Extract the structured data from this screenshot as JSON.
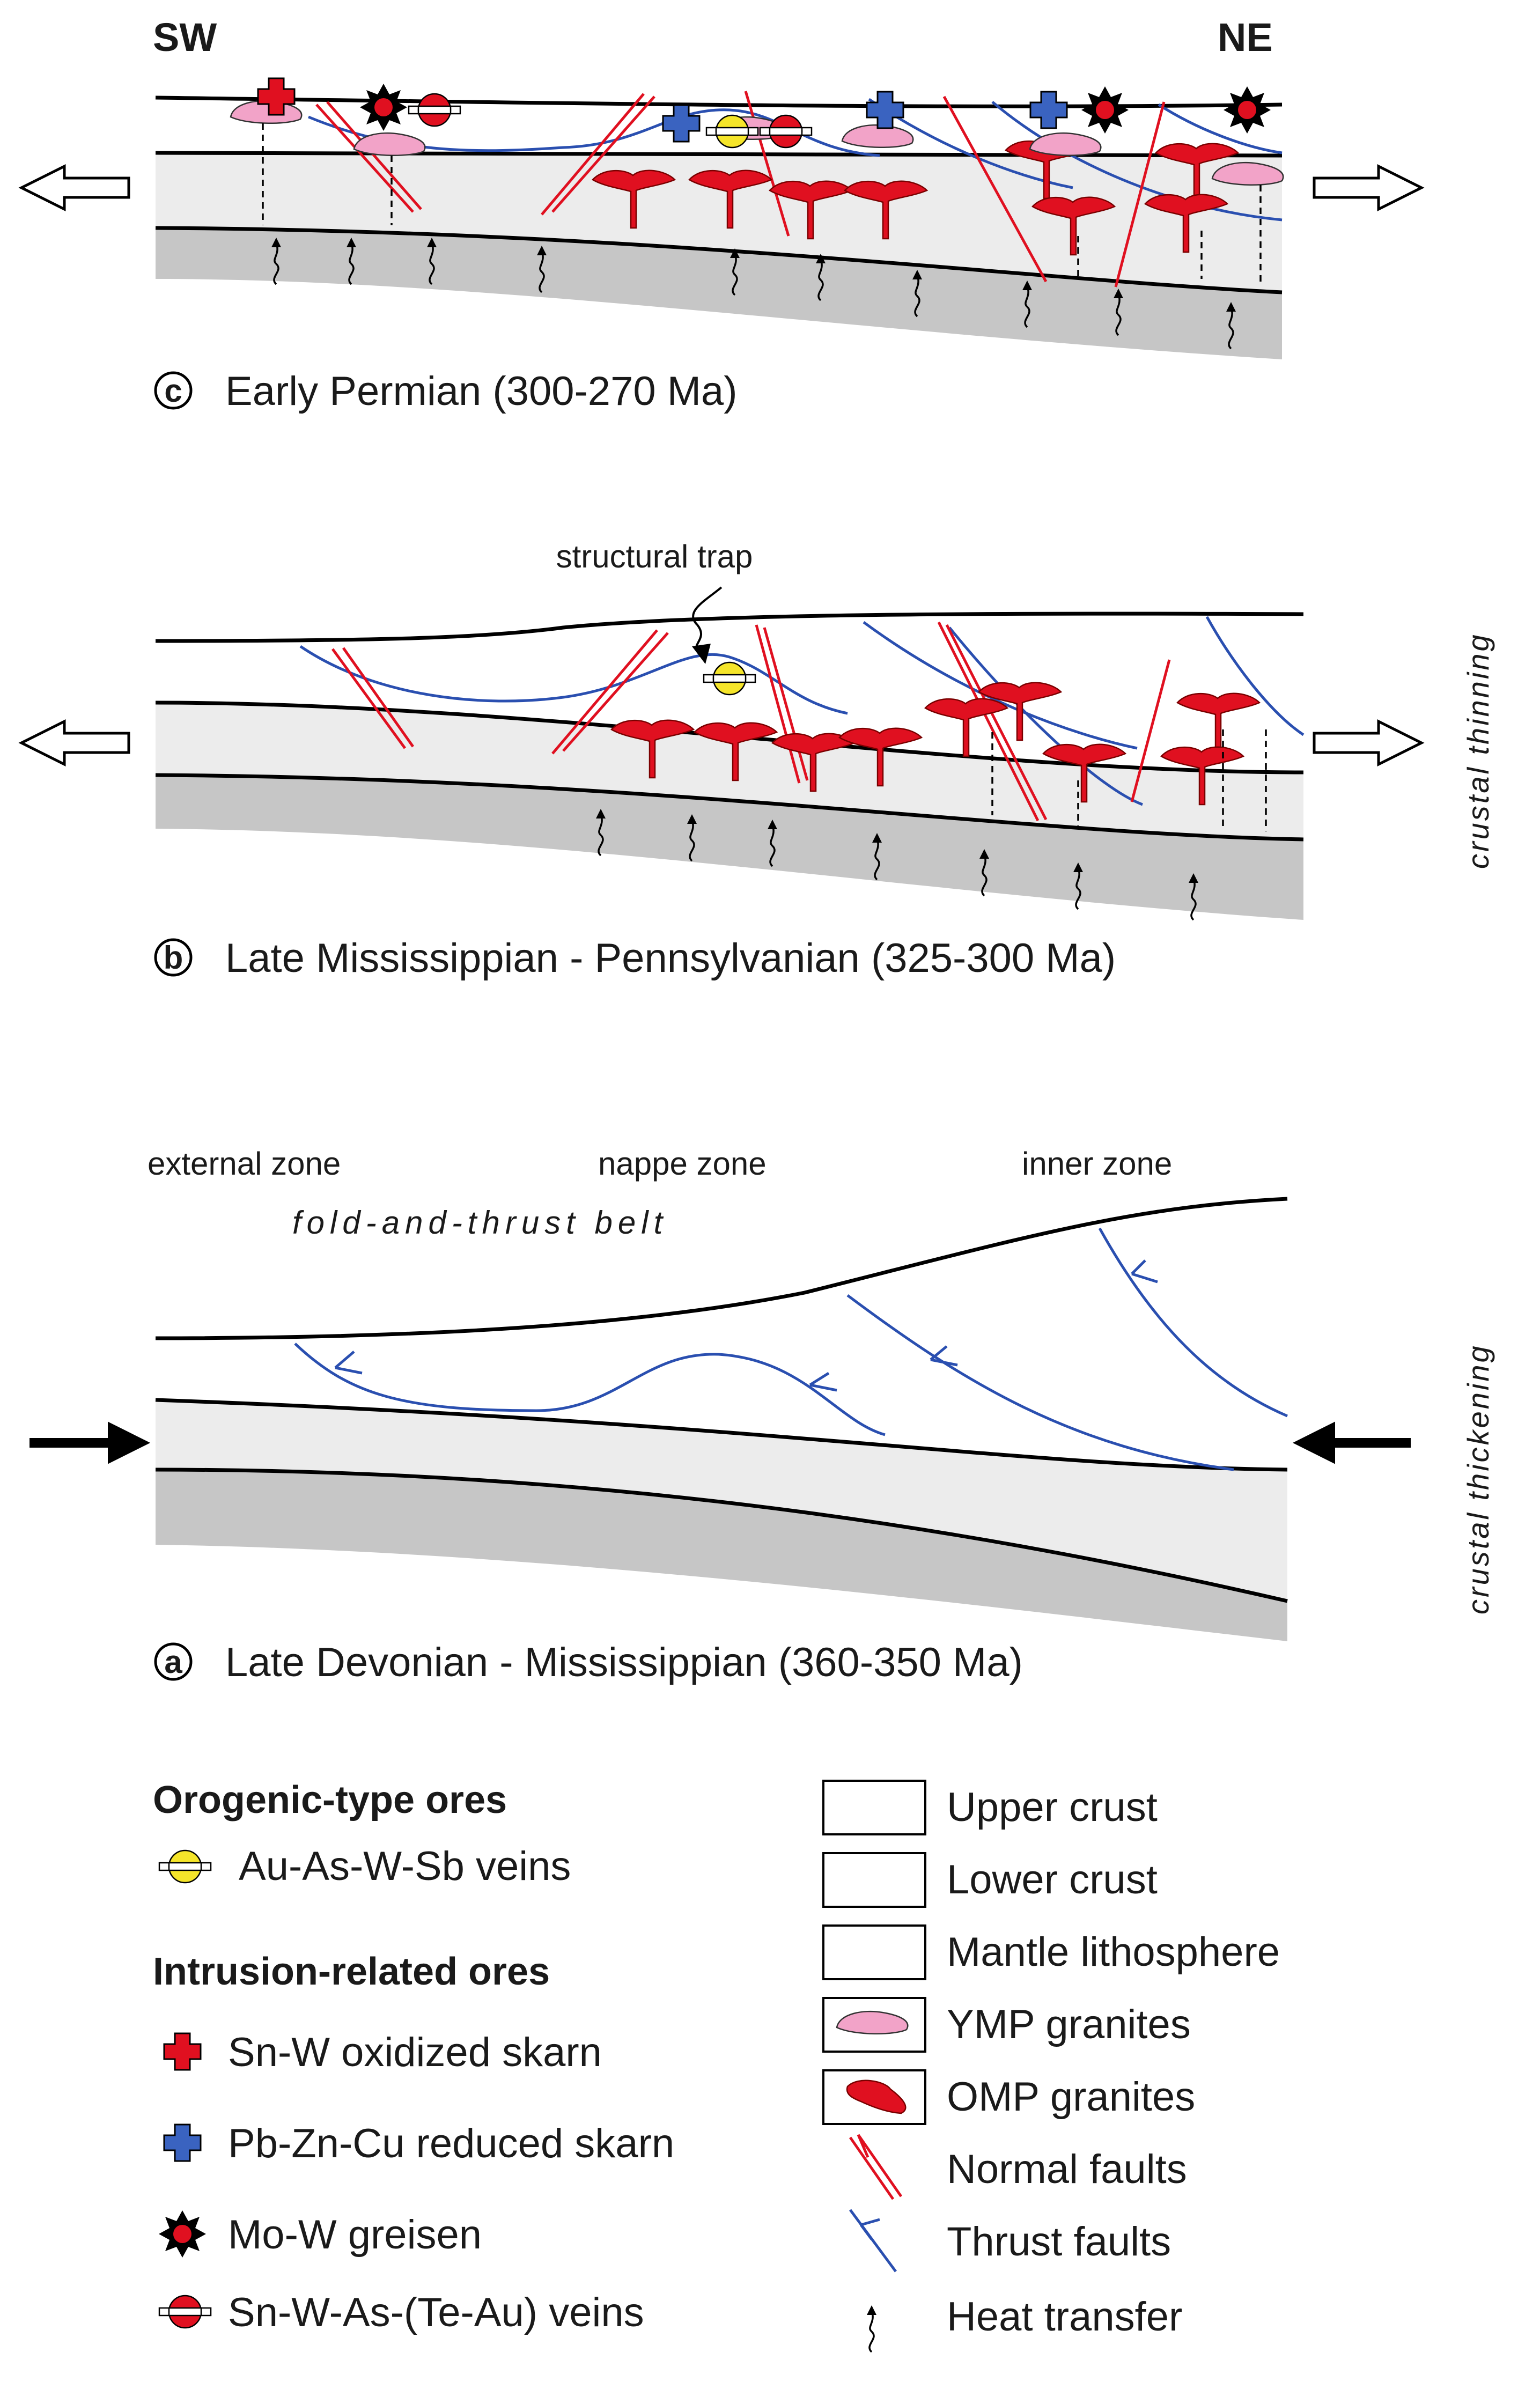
{
  "directions": {
    "left": "SW",
    "right": "NE"
  },
  "panels": {
    "c": {
      "letter": "c",
      "title": "Early Permian (300-270 Ma)"
    },
    "b": {
      "letter": "b",
      "title": "Late Mississippian - Pennsylvanian (325-300 Ma)",
      "annotation": "structural trap"
    },
    "a": {
      "letter": "a",
      "title": "Late Devonian - Mississippian (360-350 Ma)",
      "zones": {
        "external": "external zone",
        "nappe": "nappe zone",
        "inner": "inner zone"
      },
      "belt": "fold-and-thrust belt"
    }
  },
  "side_labels": {
    "top": "crustal thinning",
    "bottom": "crustal thickening"
  },
  "legend": {
    "orogenic": {
      "heading": "Orogenic-type ores",
      "items": [
        {
          "label": "Au-As-W-Sb veins",
          "icon": "au-vein-symbol"
        }
      ]
    },
    "intrusion": {
      "heading": "Intrusion-related ores",
      "items": [
        {
          "label": "Sn-W oxidized skarn",
          "icon": "red-cross-symbol"
        },
        {
          "label": "Pb-Zn-Cu reduced skarn",
          "icon": "blue-cross-symbol"
        },
        {
          "label": "Mo-W greisen",
          "icon": "star-symbol"
        },
        {
          "label": "Sn-W-As-(Te-Au) veins",
          "icon": "red-vein-symbol"
        }
      ]
    },
    "units": [
      {
        "label": "Upper crust",
        "color": "#ffffff"
      },
      {
        "label": "Lower crust",
        "color": "#ececec"
      },
      {
        "label": "Mantle lithosphere",
        "color": "#c6c6c6"
      },
      {
        "label": "YMP granites",
        "color": "#f2a3c8"
      },
      {
        "label": "OMP granites",
        "color": "#e01020"
      },
      {
        "label": "Normal faults",
        "color": "#e01020"
      },
      {
        "label": "Thrust faults",
        "color": "#2a4fb0"
      },
      {
        "label": "Heat transfer",
        "color": "#000000"
      }
    ]
  }
}
